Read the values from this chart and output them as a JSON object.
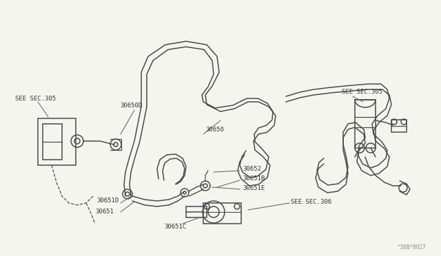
{
  "bg_color": "#f5f5f0",
  "line_color": "#4a4a4a",
  "text_color": "#333333",
  "watermark": "^308*0027",
  "labels": {
    "see_sec_305_left": "SEE SEC.305",
    "see_sec_305_right": "SEE SEC.305",
    "see_sec_306": "SEE SEC.306",
    "30650D": "30650D",
    "30650": "30650",
    "30652": "30652",
    "30651B": "30651B",
    "30651D": "30651D",
    "30651E": "30651E",
    "30651": "30651",
    "30651C": "30651C"
  },
  "font_size": 6.5,
  "lw": 1.1
}
